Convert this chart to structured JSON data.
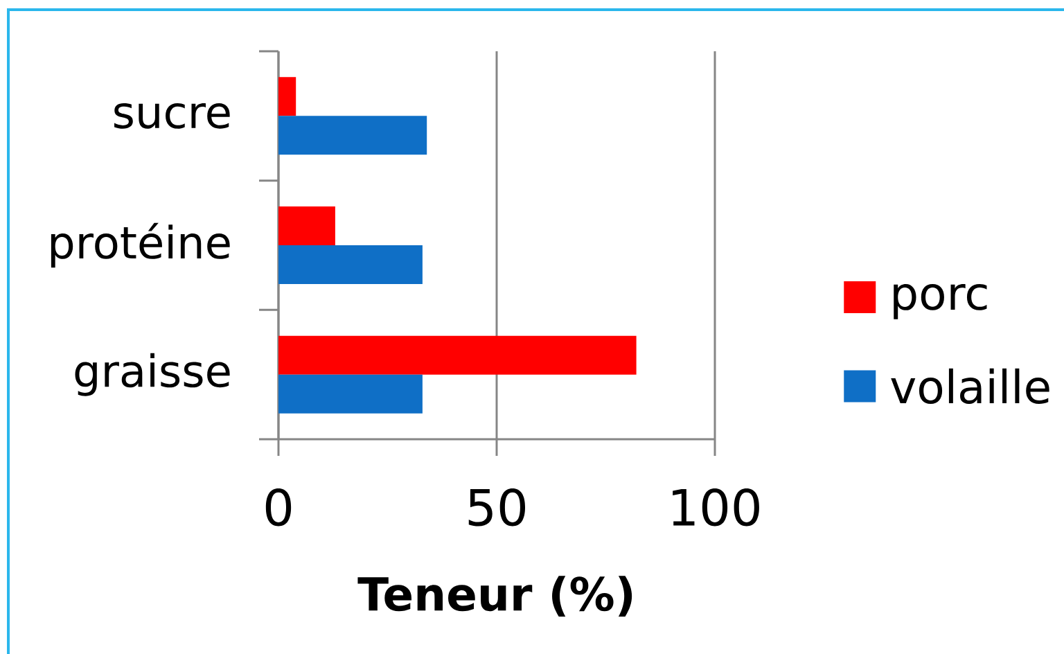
{
  "chart_data": {
    "type": "bar",
    "orientation": "horizontal",
    "categories": [
      "sucre",
      "protéine",
      "graisse"
    ],
    "series": [
      {
        "name": "porc",
        "color": "#ff0000",
        "values": [
          4,
          13,
          82
        ]
      },
      {
        "name": "volaille",
        "color": "#0f6fc6",
        "values": [
          34,
          33,
          33
        ]
      }
    ],
    "xlabel": "Teneur (%)",
    "xlim": [
      0,
      100
    ],
    "xticks": [
      0,
      50,
      100
    ],
    "grid": "x",
    "legend": "right"
  }
}
